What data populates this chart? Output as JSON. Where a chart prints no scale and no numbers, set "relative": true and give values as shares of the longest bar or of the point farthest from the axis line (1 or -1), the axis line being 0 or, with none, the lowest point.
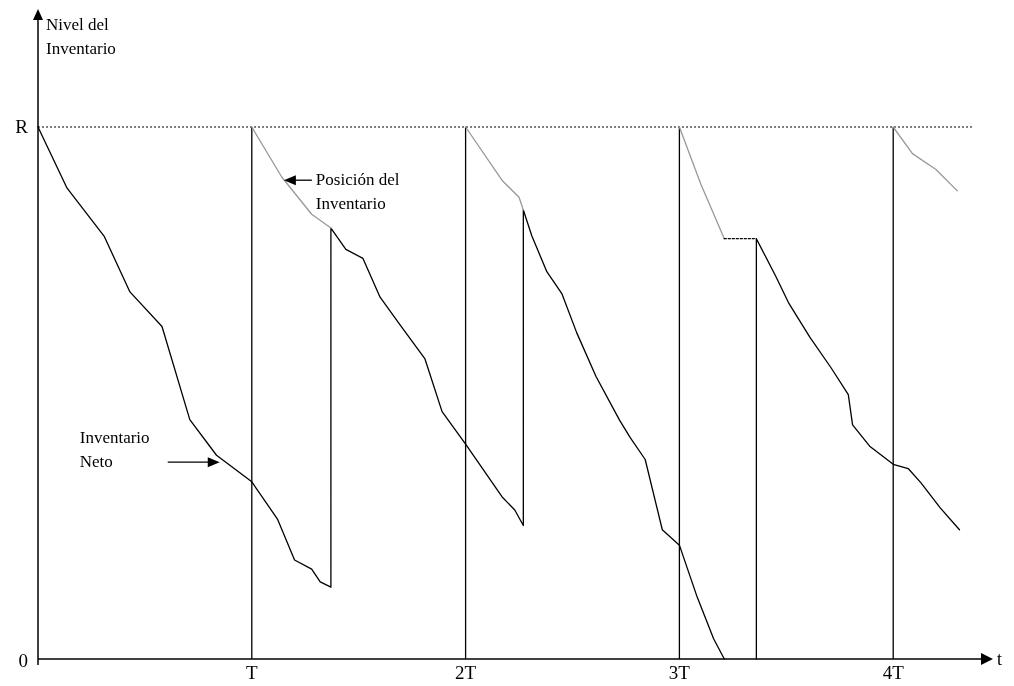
{
  "chart_data": {
    "type": "line",
    "relative": true,
    "ylabel": "Nivel del Inventario",
    "xlabel": "t",
    "xlim": [
      0,
      4.42
    ],
    "xticks": [
      {
        "value": 1,
        "label": "T"
      },
      {
        "value": 2,
        "label": "2T"
      },
      {
        "value": 3,
        "label": "3T"
      },
      {
        "value": 4,
        "label": "4T"
      }
    ],
    "marker": "none",
    "series": [
      {
        "color": "#000000",
        "line_style": "solid",
        "x": [
          0,
          0.136,
          0.309,
          0.43,
          0.58,
          0.71,
          0.835,
          1,
          1.12,
          1.2,
          1.28,
          1.32,
          1.37,
          1.37,
          1.44,
          1.52,
          1.6,
          1.69,
          1.81,
          1.89,
          2,
          2.17,
          2.23,
          2.27,
          2.27,
          2.31,
          2.38,
          2.45,
          2.52,
          2.61,
          2.72,
          2.77,
          2.84,
          2.92,
          3,
          3.08,
          3.16,
          3.21
        ],
        "values": [
          1,
          0.885,
          0.795,
          0.69,
          0.625,
          0.45,
          0.383,
          0.333,
          0.263,
          0.186,
          0.169,
          0.145,
          0.135,
          0.81,
          0.77,
          0.753,
          0.68,
          0.63,
          0.564,
          0.465,
          0.404,
          0.305,
          0.28,
          0.251,
          0.844,
          0.795,
          0.728,
          0.687,
          0.613,
          0.531,
          0.449,
          0.416,
          0.375,
          0.243,
          0.214,
          0.12,
          0.038,
          0
        ]
      },
      {
        "color": "#000000",
        "line_style": "solid",
        "x": [
          3.36,
          3.36,
          3.45,
          3.51,
          3.61,
          3.71,
          3.79,
          3.81,
          3.89,
          4,
          4.07,
          4.13,
          4.22,
          4.31
        ],
        "values": [
          0,
          0.79,
          0.72,
          0.67,
          0.605,
          0.547,
          0.497,
          0.44,
          0.4,
          0.366,
          0.358,
          0.331,
          0.284,
          0.243
        ]
      },
      {
        "color": "#999999",
        "line_style": "solid",
        "x": [
          1,
          1.14,
          1.28,
          1.37
        ],
        "values": [
          1,
          0.906,
          0.836,
          0.81
        ]
      },
      {
        "color": "#999999",
        "line_style": "solid",
        "x": [
          2,
          2.17,
          2.25,
          2.27
        ],
        "values": [
          1,
          0.9,
          0.868,
          0.844
        ]
      },
      {
        "color": "#999999",
        "line_style": "solid",
        "x": [
          3,
          3.1,
          3.21
        ],
        "values": [
          1,
          0.893,
          0.79
        ]
      },
      {
        "color": "#999999",
        "line_style": "solid",
        "x": [
          4,
          4.09,
          4.2,
          4.3
        ],
        "values": [
          1,
          0.95,
          0.92,
          0.88
        ]
      },
      {
        "color": "#000000",
        "line_style": "dotted",
        "x": [
          3.21,
          3.36
        ],
        "values": [
          0.79,
          0.79
        ]
      }
    ],
    "ref_lines": [
      {
        "axis": "y",
        "value": 1,
        "label": "R",
        "color": "#000000",
        "line_style": "dotted"
      },
      {
        "axis": "x",
        "value": 1,
        "color": "#000000",
        "line_style": "solid"
      },
      {
        "axis": "x",
        "value": 2,
        "color": "#000000",
        "line_style": "solid"
      },
      {
        "axis": "x",
        "value": 3,
        "color": "#000000",
        "line_style": "solid"
      },
      {
        "axis": "x",
        "value": 4,
        "color": "#000000",
        "line_style": "solid"
      }
    ],
    "annotations": [
      {
        "text": "Posición del Inventario",
        "x": 1.15,
        "y": 0.9
      },
      {
        "text": "Inventario Neto",
        "x": 0.85,
        "y": 0.37
      },
      "0"
    ]
  }
}
